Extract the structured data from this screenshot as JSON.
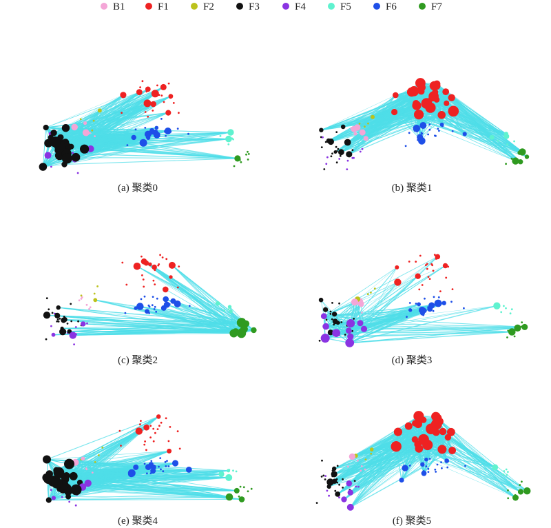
{
  "legend": {
    "items": [
      {
        "label": "B1",
        "color": "#f4a6d7"
      },
      {
        "label": "F1",
        "color": "#ee2222"
      },
      {
        "label": "F2",
        "color": "#bcc21c"
      },
      {
        "label": "F3",
        "color": "#111111"
      },
      {
        "label": "F4",
        "color": "#8a34e2"
      },
      {
        "label": "F5",
        "color": "#5ff2cf"
      },
      {
        "label": "F6",
        "color": "#1e4fe8"
      },
      {
        "label": "F7",
        "color": "#2f9a20"
      }
    ]
  },
  "edge_color": "#4fdde8",
  "panels": [
    {
      "caption": "(a) 聚类0",
      "highlight": "F3"
    },
    {
      "caption": "(b) 聚类1",
      "highlight": "F1"
    },
    {
      "caption": "(c) 聚类2",
      "highlight": "F7"
    },
    {
      "caption": "(d) 聚类3",
      "highlight": "F4"
    },
    {
      "caption": "(e) 聚类4",
      "highlight": "F3"
    },
    {
      "caption": "(f) 聚类5",
      "highlight": "F1"
    }
  ]
}
